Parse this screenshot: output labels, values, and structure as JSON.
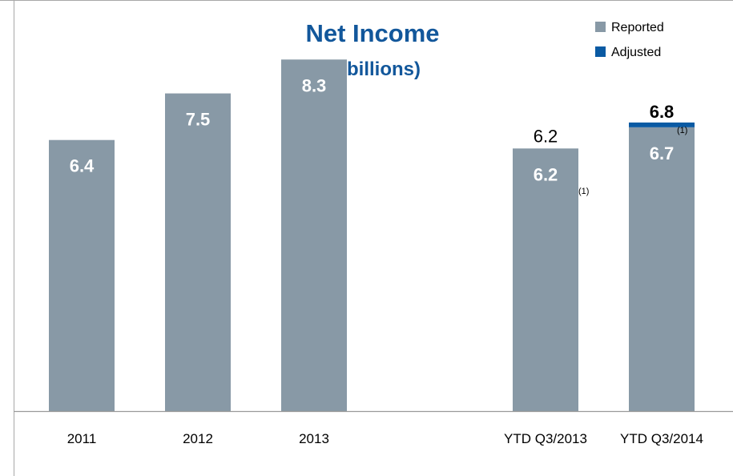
{
  "chart_data": {
    "type": "bar",
    "title": "Net Income",
    "subtitle": "($ billions)",
    "categories": [
      "2011",
      "2012",
      "2013",
      "YTD Q3/2013",
      "YTD Q3/2014"
    ],
    "series": [
      {
        "name": "Reported",
        "color": "#8899a6",
        "values": [
          6.4,
          7.5,
          8.3,
          6.2,
          6.7
        ],
        "labels": [
          "6.4",
          "7.5",
          "8.3",
          "6.2",
          "6.7"
        ]
      },
      {
        "name": "Adjusted",
        "color": "#0a5aa3",
        "values": [
          null,
          null,
          null,
          6.2,
          6.8
        ],
        "labels": [
          null,
          null,
          null,
          "6.2",
          "6.8"
        ]
      }
    ],
    "footnote_marks": [
      "(1)",
      "(1)"
    ],
    "ylim": [
      0,
      9.1
    ],
    "legend_position": "top-right",
    "grid": false
  },
  "colors": {
    "title": "#12579b",
    "bar_label": "#ffffff",
    "axis": "#9a9a9a",
    "frame": "#a8a8a8"
  }
}
